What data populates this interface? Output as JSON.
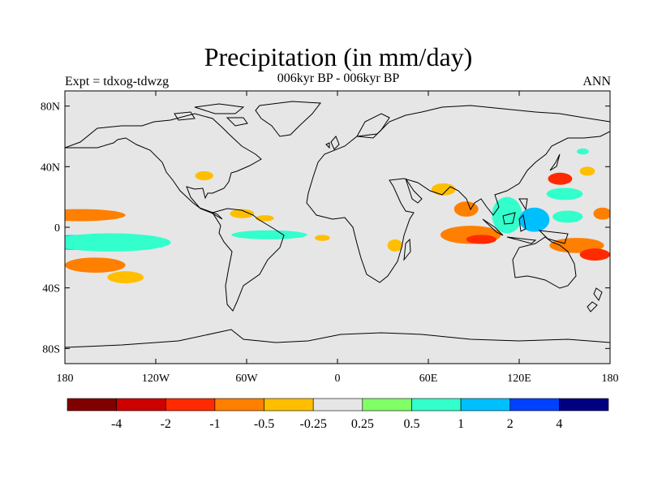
{
  "map": {
    "title": "Precipitation (in mm/day)",
    "subtitle": "006kyr BP - 006kyr BP",
    "left_label": "Expt = tdxog-tdwzg",
    "right_label": "ANN",
    "lat_ticks": [
      {
        "lat": 80,
        "label": "80N"
      },
      {
        "lat": 40,
        "label": "40N"
      },
      {
        "lat": 0,
        "label": "0"
      },
      {
        "lat": -40,
        "label": "40S"
      },
      {
        "lat": -80,
        "label": "80S"
      }
    ],
    "lon_ticks": [
      {
        "lon": -180,
        "label": "180"
      },
      {
        "lon": -120,
        "label": "120W"
      },
      {
        "lon": -60,
        "label": "60W"
      },
      {
        "lon": 0,
        "label": "0"
      },
      {
        "lon": 60,
        "label": "60E"
      },
      {
        "lon": 120,
        "label": "120E"
      },
      {
        "lon": 180,
        "label": "180"
      }
    ],
    "land_color": "#e6e6e6",
    "colorbar": {
      "colors": [
        "#800000",
        "#cc0000",
        "#ff2a00",
        "#ff7f00",
        "#ffbf00",
        "#e6e6e6",
        "#80ff66",
        "#33ffcc",
        "#00bfff",
        "#0040ff",
        "#000080"
      ],
      "labels": [
        "-4",
        "-2",
        "-1",
        "-0.5",
        "-0.25",
        "0.25",
        "0.5",
        "1",
        "2",
        "4"
      ]
    },
    "anomaly_patches": [
      {
        "lon": -170,
        "lat": 8,
        "rx": 30,
        "ry": 4,
        "level": "-0.5"
      },
      {
        "lon": -170,
        "lat": -10,
        "rx": 30,
        "ry": 5,
        "level": "1"
      },
      {
        "lon": -150,
        "lat": -10,
        "rx": 40,
        "ry": 6,
        "level": "0.5"
      },
      {
        "lon": -160,
        "lat": -25,
        "rx": 20,
        "ry": 5,
        "level": "-0.5"
      },
      {
        "lon": -140,
        "lat": -33,
        "rx": 12,
        "ry": 4,
        "level": "-0.25"
      },
      {
        "lon": -88,
        "lat": 34,
        "rx": 6,
        "ry": 3,
        "level": "-0.25"
      },
      {
        "lon": -63,
        "lat": 9,
        "rx": 8,
        "ry": 3,
        "level": "-0.25"
      },
      {
        "lon": -48,
        "lat": 6,
        "rx": 6,
        "ry": 2,
        "level": "-0.25"
      },
      {
        "lon": -45,
        "lat": -5,
        "rx": 25,
        "ry": 3,
        "level": "0.5"
      },
      {
        "lon": -10,
        "lat": -7,
        "rx": 5,
        "ry": 2,
        "level": "-0.25"
      },
      {
        "lon": 38,
        "lat": -12,
        "rx": 5,
        "ry": 4,
        "level": "-0.25"
      },
      {
        "lon": 70,
        "lat": 25,
        "rx": 8,
        "ry": 4,
        "level": "-0.25"
      },
      {
        "lon": 85,
        "lat": 12,
        "rx": 8,
        "ry": 5,
        "level": "-0.5"
      },
      {
        "lon": 88,
        "lat": -5,
        "rx": 20,
        "ry": 6,
        "level": "-0.5"
      },
      {
        "lon": 95,
        "lat": -8,
        "rx": 10,
        "ry": 3,
        "level": "-1"
      },
      {
        "lon": 112,
        "lat": 8,
        "rx": 10,
        "ry": 12,
        "level": "0.5"
      },
      {
        "lon": 130,
        "lat": 5,
        "rx": 10,
        "ry": 8,
        "level": "1"
      },
      {
        "lon": 150,
        "lat": 22,
        "rx": 12,
        "ry": 4,
        "level": "0.5"
      },
      {
        "lon": 152,
        "lat": 7,
        "rx": 10,
        "ry": 4,
        "level": "0.5"
      },
      {
        "lon": 147,
        "lat": 32,
        "rx": 8,
        "ry": 4,
        "level": "-1"
      },
      {
        "lon": 158,
        "lat": -12,
        "rx": 18,
        "ry": 5,
        "level": "-0.5"
      },
      {
        "lon": 170,
        "lat": -18,
        "rx": 10,
        "ry": 4,
        "level": "-1"
      },
      {
        "lon": 175,
        "lat": 9,
        "rx": 6,
        "ry": 4,
        "level": "-0.5"
      },
      {
        "lon": 165,
        "lat": 37,
        "rx": 5,
        "ry": 3,
        "level": "-0.25"
      },
      {
        "lon": 162,
        "lat": 50,
        "rx": 4,
        "ry": 2,
        "level": "0.5"
      }
    ]
  }
}
